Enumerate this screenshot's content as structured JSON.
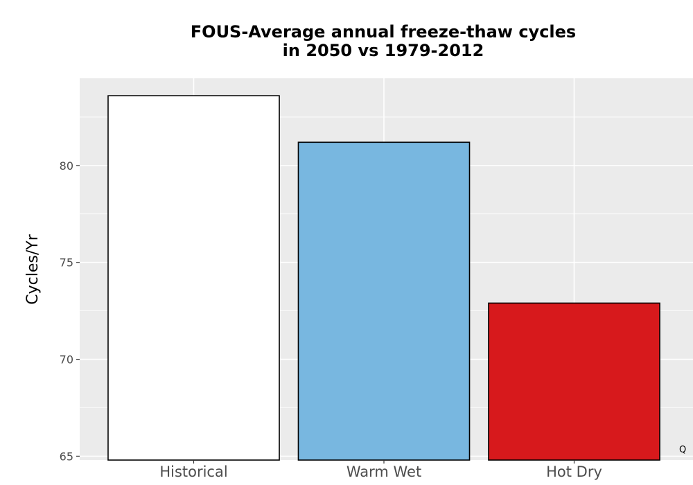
{
  "chart_data": {
    "type": "bar",
    "title_lines": [
      "FOUS-Average annual freeze-thaw cycles",
      "in 2050 vs 1979-2012"
    ],
    "xlabel": "",
    "ylabel": "Cycles/Yr",
    "categories": [
      "Historical",
      "Warm Wet",
      "Hot Dry"
    ],
    "values": [
      83.6,
      81.2,
      72.9
    ],
    "colors": [
      "#ffffff",
      "#78b7e0",
      "#d7191c"
    ],
    "ylim": [
      64.8,
      84.5
    ],
    "yticks": [
      65,
      70,
      75,
      80
    ],
    "ytick_labels": [
      "65",
      "70",
      "75",
      "80"
    ],
    "grid": true,
    "panel_background": "#ebebeb",
    "bar_outline": "#000000"
  },
  "corner_mark": "Q"
}
